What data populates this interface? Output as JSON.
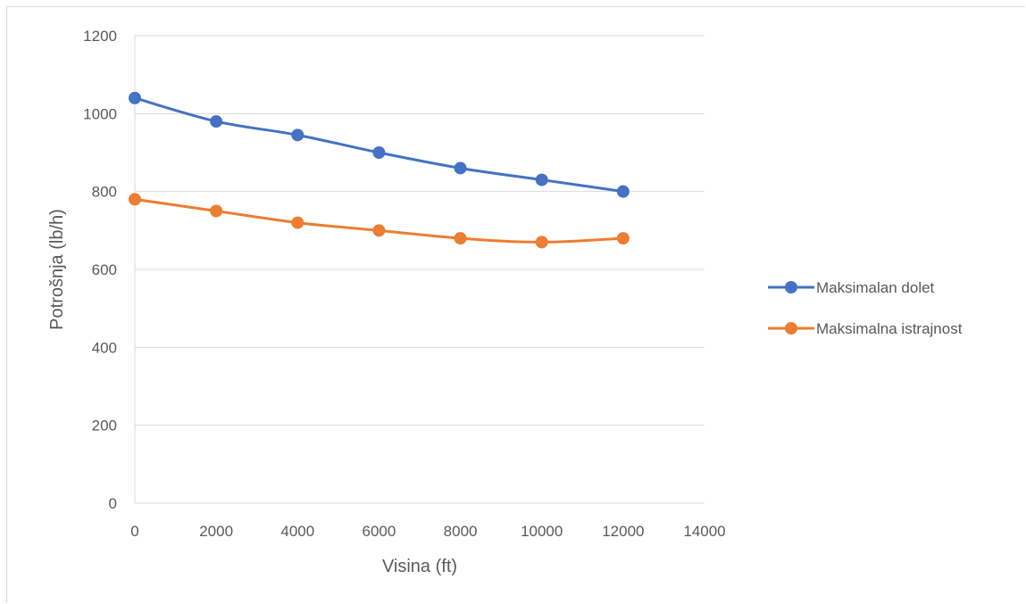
{
  "chart_data": {
    "type": "line",
    "title": "",
    "xlabel": "Visina (ft)",
    "ylabel": "Potrošnja (lb/h)",
    "x": [
      0,
      2000,
      4000,
      6000,
      8000,
      10000,
      12000
    ],
    "xlim": [
      0,
      14000
    ],
    "ylim": [
      0,
      1200
    ],
    "xticks": [
      0,
      2000,
      4000,
      6000,
      8000,
      10000,
      12000,
      14000
    ],
    "yticks": [
      0,
      200,
      400,
      600,
      800,
      1000,
      1200
    ],
    "grid": "horizontal",
    "legend_position": "right",
    "series": [
      {
        "name": "Maksimalan dolet",
        "color": "#4472c4",
        "values": [
          1040,
          980,
          945,
          900,
          860,
          830,
          800
        ]
      },
      {
        "name": "Maksimalna istrajnost",
        "color": "#ed7d31",
        "values": [
          780,
          750,
          720,
          700,
          680,
          670,
          680
        ]
      }
    ]
  }
}
